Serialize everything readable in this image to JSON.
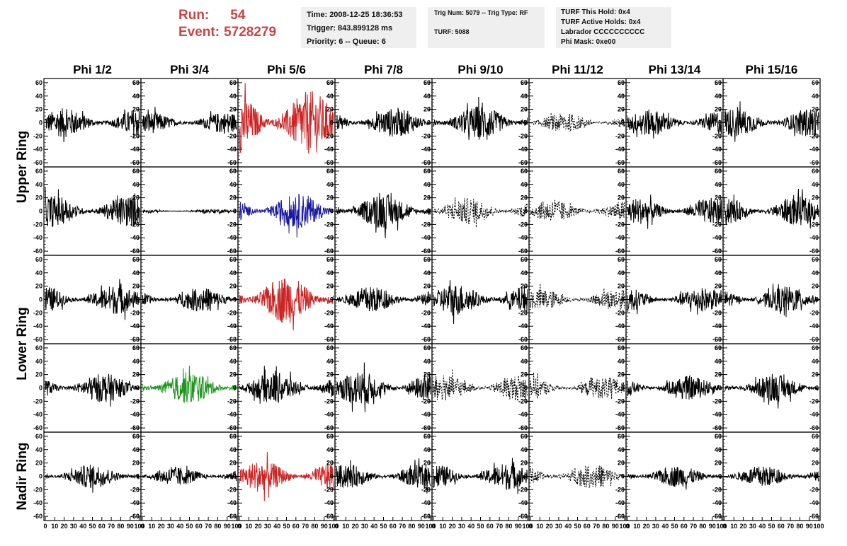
{
  "header": {
    "run_label": "Run:",
    "run_value": "54",
    "event_label": "Event:",
    "event_value": "5728279"
  },
  "info1": {
    "time": "Time: 2008-12-25 18:36:53",
    "trigger": "Trigger: 843.899128 ms",
    "priority": "Priority: 6 -- Queue: 6"
  },
  "info2": {
    "trig": "Trig Num: 5079 -- Trig Type: RF",
    "turf": "TURF: 5088"
  },
  "info3": {
    "hold": "TURF This Hold: 0x4",
    "active": "TURF Active Holds: 0x4",
    "labrador": "Labrador CCCCCCCCCC",
    "mask": "Phi Mask: 0xe00"
  },
  "chart_data": {
    "type": "line",
    "columns": [
      "Phi 1/2",
      "Phi 3/4",
      "Phi 5/6",
      "Phi 7/8",
      "Phi 9/10",
      "Phi 11/12",
      "Phi 13/14",
      "Phi 15/16"
    ],
    "ring_labels": [
      {
        "label": "Upper Ring",
        "rows": [
          0,
          1
        ]
      },
      {
        "label": "Lower Ring",
        "rows": [
          2,
          3
        ]
      },
      {
        "label": "Nadir Ring",
        "rows": [
          4
        ]
      }
    ],
    "xlim": [
      0,
      100
    ],
    "ylim": [
      -62,
      62
    ],
    "y_ticks": [
      -60,
      -40,
      -20,
      0,
      20,
      40,
      60
    ],
    "x_tick_labels": [
      "0",
      "10",
      "20",
      "30",
      "40",
      "50",
      "60",
      "70",
      "80",
      "90",
      "100"
    ],
    "colors": {
      "black": "#000000",
      "red": "#cc2222",
      "blue": "#1a1aa0",
      "green": "#1e961e"
    },
    "panels": [
      [
        {
          "color": "black",
          "style": "solid",
          "amp": 22
        },
        {
          "color": "black",
          "style": "solid",
          "amp": 16
        },
        {
          "color": "red",
          "style": "solid",
          "amp": 48
        },
        {
          "color": "black",
          "style": "solid",
          "amp": 22
        },
        {
          "color": "black",
          "style": "solid",
          "amp": 26
        },
        {
          "color": "black",
          "style": "dashed",
          "amp": 14
        },
        {
          "color": "black",
          "style": "solid",
          "amp": 20
        },
        {
          "color": "black",
          "style": "solid",
          "amp": 22
        }
      ],
      [
        {
          "color": "black",
          "style": "solid",
          "amp": 24
        },
        {
          "color": "black",
          "style": "solid",
          "amp": 3
        },
        {
          "color": "blue",
          "style": "solid",
          "amp": 26
        },
        {
          "color": "black",
          "style": "solid",
          "amp": 26
        },
        {
          "color": "black",
          "style": "dashed",
          "amp": 20
        },
        {
          "color": "black",
          "style": "dashed",
          "amp": 16
        },
        {
          "color": "black",
          "style": "solid",
          "amp": 20
        },
        {
          "color": "black",
          "style": "solid",
          "amp": 22
        }
      ],
      [
        {
          "color": "black",
          "style": "solid",
          "amp": 22
        },
        {
          "color": "black",
          "style": "solid",
          "amp": 18
        },
        {
          "color": "red",
          "style": "solid",
          "amp": 36
        },
        {
          "color": "black",
          "style": "solid",
          "amp": 20
        },
        {
          "color": "black",
          "style": "solid",
          "amp": 24
        },
        {
          "color": "black",
          "style": "dashed",
          "amp": 16
        },
        {
          "color": "black",
          "style": "solid",
          "amp": 18
        },
        {
          "color": "black",
          "style": "solid",
          "amp": 20
        }
      ],
      [
        {
          "color": "black",
          "style": "solid",
          "amp": 22
        },
        {
          "color": "green",
          "style": "solid",
          "amp": 24
        },
        {
          "color": "black",
          "style": "solid",
          "amp": 24
        },
        {
          "color": "black",
          "style": "solid",
          "amp": 26
        },
        {
          "color": "black",
          "style": "dashed",
          "amp": 20
        },
        {
          "color": "black",
          "style": "dashed",
          "amp": 16
        },
        {
          "color": "black",
          "style": "solid",
          "amp": 18
        },
        {
          "color": "black",
          "style": "solid",
          "amp": 20
        }
      ],
      [
        {
          "color": "black",
          "style": "solid",
          "amp": 18
        },
        {
          "color": "black",
          "style": "solid",
          "amp": 14
        },
        {
          "color": "red",
          "style": "solid",
          "amp": 24
        },
        {
          "color": "black",
          "style": "solid",
          "amp": 18
        },
        {
          "color": "black",
          "style": "solid",
          "amp": 20
        },
        {
          "color": "black",
          "style": "dashed",
          "amp": 18
        },
        {
          "color": "black",
          "style": "solid",
          "amp": 16
        },
        {
          "color": "black",
          "style": "solid",
          "amp": 16
        }
      ]
    ]
  }
}
